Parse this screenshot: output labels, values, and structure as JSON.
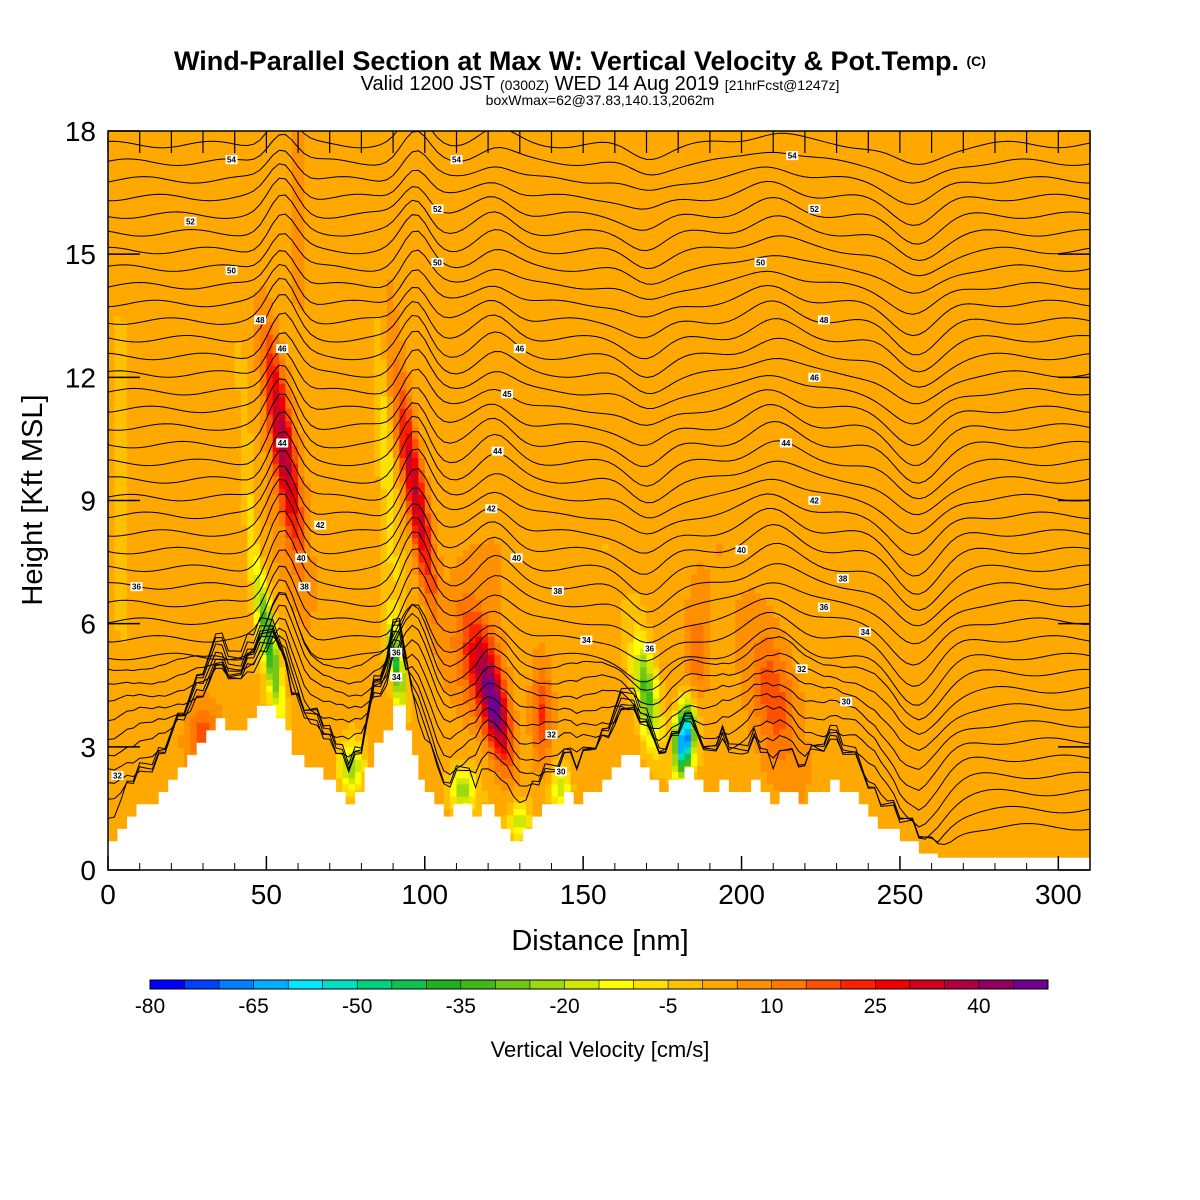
{
  "chart_data": {
    "type": "heatmap",
    "title": "Wind-Parallel Section at Max W: Vertical Velocity & Pot.Temp.",
    "title_suffix": "(C)",
    "subtitle_parts": {
      "a": "Valid 1200 JST",
      "b": "(0300Z)",
      "c": "WED 14 Aug 2019",
      "d": "[21hrFcst@1247z]"
    },
    "info": "boxWmax=62@37.83,140.13,2062m",
    "xlabel": "Distance [nm]",
    "ylabel": "Height [Kft MSL]",
    "xlim": [
      0,
      310
    ],
    "ylim": [
      0,
      18
    ],
    "x_ticks": [
      0,
      50,
      100,
      150,
      200,
      250,
      300
    ],
    "y_ticks": [
      0,
      3,
      6,
      9,
      12,
      15,
      18
    ],
    "x_tick_labels": [
      "0",
      "50",
      "100",
      "150",
      "200",
      "250",
      "300"
    ],
    "y_tick_labels": [
      "0",
      "3",
      "6",
      "9",
      "12",
      "15",
      "18"
    ],
    "colorbar": {
      "title": "Vertical Velocity [cm/s]",
      "levels": [
        -80,
        -75,
        -70,
        -65,
        -60,
        -55,
        -50,
        -45,
        -40,
        -35,
        -30,
        -25,
        -20,
        -15,
        -10,
        -5,
        0,
        5,
        10,
        15,
        20,
        25,
        30,
        35,
        40,
        45,
        50
      ],
      "tick_values": [
        -80,
        -65,
        -50,
        -35,
        -20,
        -5,
        10,
        25,
        40
      ],
      "tick_labels": [
        "-80",
        "-65",
        "-50",
        "-35",
        "-20",
        "-5",
        "10",
        "25",
        "40"
      ],
      "colors": [
        "#0000ff",
        "#0040ff",
        "#0080ff",
        "#00b0ff",
        "#00e8ff",
        "#00e0c0",
        "#00d080",
        "#10c050",
        "#20b020",
        "#40b818",
        "#70c818",
        "#a0d810",
        "#d0e800",
        "#ffff00",
        "#ffe000",
        "#ffc000",
        "#ffa800",
        "#ff9000",
        "#ff7800",
        "#ff5000",
        "#ff2000",
        "#f00000",
        "#d00020",
        "#b00040",
        "#900060",
        "#700090"
      ]
    },
    "terrain": [
      [
        0,
        0.7
      ],
      [
        3,
        0.7
      ],
      [
        3,
        1.0
      ],
      [
        6,
        1.0
      ],
      [
        6,
        1.3
      ],
      [
        9,
        1.3
      ],
      [
        9,
        1.6
      ],
      [
        16,
        1.6
      ],
      [
        16,
        1.9
      ],
      [
        19,
        1.9
      ],
      [
        19,
        2.2
      ],
      [
        22,
        2.2
      ],
      [
        22,
        2.5
      ],
      [
        25,
        2.5
      ],
      [
        25,
        2.8
      ],
      [
        28,
        2.8
      ],
      [
        28,
        3.1
      ],
      [
        31,
        3.1
      ],
      [
        31,
        3.4
      ],
      [
        34,
        3.4
      ],
      [
        34,
        3.7
      ],
      [
        37,
        3.7
      ],
      [
        37,
        3.4
      ],
      [
        44,
        3.4
      ],
      [
        44,
        3.7
      ],
      [
        47,
        3.7
      ],
      [
        47,
        4.0
      ],
      [
        53,
        4.0
      ],
      [
        53,
        3.7
      ],
      [
        56,
        3.7
      ],
      [
        56,
        3.4
      ],
      [
        58,
        3.4
      ],
      [
        58,
        2.8
      ],
      [
        62,
        2.8
      ],
      [
        62,
        2.5
      ],
      [
        68,
        2.5
      ],
      [
        68,
        2.2
      ],
      [
        72,
        2.2
      ],
      [
        72,
        1.9
      ],
      [
        75,
        1.9
      ],
      [
        75,
        1.6
      ],
      [
        78,
        1.6
      ],
      [
        78,
        1.9
      ],
      [
        81,
        1.9
      ],
      [
        81,
        2.5
      ],
      [
        84,
        2.5
      ],
      [
        84,
        3.1
      ],
      [
        87,
        3.1
      ],
      [
        87,
        3.4
      ],
      [
        90,
        3.4
      ],
      [
        90,
        4.0
      ],
      [
        94,
        4.0
      ],
      [
        94,
        3.4
      ],
      [
        96,
        3.4
      ],
      [
        96,
        2.8
      ],
      [
        98,
        2.8
      ],
      [
        98,
        2.2
      ],
      [
        100,
        2.2
      ],
      [
        100,
        1.9
      ],
      [
        103,
        1.9
      ],
      [
        103,
        1.6
      ],
      [
        106,
        1.6
      ],
      [
        106,
        1.3
      ],
      [
        109,
        1.3
      ],
      [
        109,
        1.6
      ],
      [
        115,
        1.6
      ],
      [
        115,
        1.3
      ],
      [
        118,
        1.3
      ],
      [
        118,
        1.6
      ],
      [
        122,
        1.6
      ],
      [
        122,
        1.3
      ],
      [
        124,
        1.3
      ],
      [
        124,
        1.0
      ],
      [
        127,
        1.0
      ],
      [
        127,
        0.7
      ],
      [
        131,
        0.7
      ],
      [
        131,
        1.0
      ],
      [
        134,
        1.0
      ],
      [
        134,
        1.3
      ],
      [
        137,
        1.3
      ],
      [
        137,
        1.6
      ],
      [
        144,
        1.6
      ],
      [
        144,
        1.9
      ],
      [
        147,
        1.9
      ],
      [
        147,
        1.6
      ],
      [
        150,
        1.6
      ],
      [
        150,
        1.9
      ],
      [
        156,
        1.9
      ],
      [
        156,
        2.2
      ],
      [
        159,
        2.2
      ],
      [
        159,
        2.5
      ],
      [
        162,
        2.5
      ],
      [
        162,
        2.8
      ],
      [
        168,
        2.8
      ],
      [
        168,
        2.5
      ],
      [
        171,
        2.5
      ],
      [
        171,
        2.2
      ],
      [
        174,
        2.2
      ],
      [
        174,
        1.9
      ],
      [
        177,
        1.9
      ],
      [
        177,
        2.2
      ],
      [
        182,
        2.2
      ],
      [
        182,
        2.5
      ],
      [
        185,
        2.5
      ],
      [
        185,
        2.2
      ],
      [
        188,
        2.2
      ],
      [
        188,
        1.9
      ],
      [
        193,
        1.9
      ],
      [
        193,
        2.2
      ],
      [
        196,
        2.2
      ],
      [
        196,
        1.9
      ],
      [
        203,
        1.9
      ],
      [
        203,
        2.2
      ],
      [
        206,
        2.2
      ],
      [
        206,
        1.9
      ],
      [
        209,
        1.9
      ],
      [
        209,
        1.6
      ],
      [
        212,
        1.6
      ],
      [
        212,
        1.9
      ],
      [
        218,
        1.9
      ],
      [
        218,
        1.6
      ],
      [
        221,
        1.6
      ],
      [
        221,
        1.9
      ],
      [
        228,
        1.9
      ],
      [
        228,
        2.2
      ],
      [
        231,
        2.2
      ],
      [
        231,
        1.9
      ],
      [
        237,
        1.9
      ],
      [
        237,
        1.6
      ],
      [
        240,
        1.6
      ],
      [
        240,
        1.3
      ],
      [
        243,
        1.3
      ],
      [
        243,
        1.0
      ],
      [
        250,
        1.0
      ],
      [
        250,
        0.7
      ],
      [
        256,
        0.7
      ],
      [
        256,
        0.4
      ],
      [
        262,
        0.4
      ],
      [
        262,
        0.3
      ],
      [
        310,
        0.3
      ]
    ],
    "updrafts": [
      {
        "x": 55,
        "y": 10.5,
        "sx": 3.5,
        "sy": 2.6,
        "tilt": -0.45,
        "w": 35
      },
      {
        "x": 97,
        "y": 9.2,
        "sx": 3.2,
        "sy": 2.6,
        "tilt": -0.5,
        "w": 34
      },
      {
        "x": 122,
        "y": 4.0,
        "sx": 4.0,
        "sy": 1.4,
        "tilt": -0.6,
        "w": 45
      },
      {
        "x": 115,
        "y": 5.2,
        "sx": 6.0,
        "sy": 1.5,
        "tilt": -0.3,
        "w": 16
      },
      {
        "x": 137,
        "y": 3.8,
        "sx": 3.0,
        "sy": 1.2,
        "tilt": 0,
        "w": 18
      },
      {
        "x": 210,
        "y": 4.2,
        "sx": 7.0,
        "sy": 1.7,
        "tilt": -0.4,
        "w": 16
      },
      {
        "x": 30,
        "y": 3.3,
        "sx": 5.0,
        "sy": 0.8,
        "tilt": 0,
        "w": 14
      },
      {
        "x": 60,
        "y": 16.5,
        "sx": 3.0,
        "sy": 3.0,
        "tilt": 0,
        "w": 10
      },
      {
        "x": 186,
        "y": 5.2,
        "sx": 3.0,
        "sy": 1.2,
        "tilt": 0,
        "w": 10
      }
    ],
    "downdrafts": [
      {
        "x": 51,
        "y": 5.5,
        "sx": 2.5,
        "sy": 1.7,
        "tilt": -0.45,
        "w": -42
      },
      {
        "x": 91,
        "y": 5.0,
        "sx": 2.1,
        "sy": 1.0,
        "tilt": -0.4,
        "w": -40
      },
      {
        "x": 182,
        "y": 3.2,
        "sx": 3.0,
        "sy": 0.8,
        "tilt": 0.2,
        "w": -75
      },
      {
        "x": 170,
        "y": 4.3,
        "sx": 3.5,
        "sy": 1.3,
        "tilt": -0.4,
        "w": -35
      },
      {
        "x": 77,
        "y": 2.5,
        "sx": 4.0,
        "sy": 0.7,
        "tilt": 0,
        "w": -25
      },
      {
        "x": 112,
        "y": 2.0,
        "sx": 4.0,
        "sy": 0.5,
        "tilt": 0,
        "w": -25
      },
      {
        "x": 130,
        "y": 1.2,
        "sx": 3.0,
        "sy": 0.5,
        "tilt": 0,
        "w": -20
      },
      {
        "x": 143,
        "y": 2.0,
        "sx": 3.0,
        "sy": 0.6,
        "tilt": 0,
        "w": -22
      },
      {
        "x": 45,
        "y": 8.5,
        "sx": 2.0,
        "sy": 3.5,
        "tilt": -0.2,
        "w": -10
      },
      {
        "x": 88,
        "y": 10.0,
        "sx": 2.0,
        "sy": 4.0,
        "tilt": -0.2,
        "w": -10
      },
      {
        "x": 4,
        "y": 10.0,
        "sx": 2.0,
        "sy": 4.0,
        "tilt": 0,
        "w": -8
      }
    ],
    "contour_labels": [
      {
        "x": 39,
        "y": 17.3,
        "text": "54"
      },
      {
        "x": 110,
        "y": 17.3,
        "text": "54"
      },
      {
        "x": 216,
        "y": 17.4,
        "text": "54"
      },
      {
        "x": 26,
        "y": 15.8,
        "text": "52"
      },
      {
        "x": 104,
        "y": 16.1,
        "text": "52"
      },
      {
        "x": 223,
        "y": 16.1,
        "text": "52"
      },
      {
        "x": 39,
        "y": 14.6,
        "text": "50"
      },
      {
        "x": 104,
        "y": 14.8,
        "text": "50"
      },
      {
        "x": 206,
        "y": 14.8,
        "text": "50"
      },
      {
        "x": 48,
        "y": 13.4,
        "text": "48"
      },
      {
        "x": 226,
        "y": 13.4,
        "text": "48"
      },
      {
        "x": 130,
        "y": 12.7,
        "text": "46"
      },
      {
        "x": 55,
        "y": 12.7,
        "text": "46"
      },
      {
        "x": 223,
        "y": 12.0,
        "text": "46"
      },
      {
        "x": 126,
        "y": 11.6,
        "text": "45"
      },
      {
        "x": 55,
        "y": 10.4,
        "text": "44"
      },
      {
        "x": 123,
        "y": 10.2,
        "text": "44"
      },
      {
        "x": 214,
        "y": 10.4,
        "text": "44"
      },
      {
        "x": 121,
        "y": 8.8,
        "text": "42"
      },
      {
        "x": 67,
        "y": 8.4,
        "text": "42"
      },
      {
        "x": 223,
        "y": 9.0,
        "text": "42"
      },
      {
        "x": 61,
        "y": 7.6,
        "text": "40"
      },
      {
        "x": 129,
        "y": 7.6,
        "text": "40"
      },
      {
        "x": 200,
        "y": 7.8,
        "text": "40"
      },
      {
        "x": 62,
        "y": 6.9,
        "text": "38"
      },
      {
        "x": 142,
        "y": 6.8,
        "text": "38"
      },
      {
        "x": 232,
        "y": 7.1,
        "text": "38"
      },
      {
        "x": 9,
        "y": 6.9,
        "text": "36"
      },
      {
        "x": 226,
        "y": 6.4,
        "text": "36"
      },
      {
        "x": 91,
        "y": 5.3,
        "text": "36"
      },
      {
        "x": 171,
        "y": 5.4,
        "text": "36"
      },
      {
        "x": 151,
        "y": 5.6,
        "text": "34"
      },
      {
        "x": 239,
        "y": 5.8,
        "text": "34"
      },
      {
        "x": 91,
        "y": 4.7,
        "text": "34"
      },
      {
        "x": 219,
        "y": 4.9,
        "text": "32"
      },
      {
        "x": 140,
        "y": 3.3,
        "text": "32"
      },
      {
        "x": 233,
        "y": 4.1,
        "text": "30"
      },
      {
        "x": 143,
        "y": 2.4,
        "text": "30"
      },
      {
        "x": 3,
        "y": 2.3,
        "text": "32"
      }
    ]
  }
}
